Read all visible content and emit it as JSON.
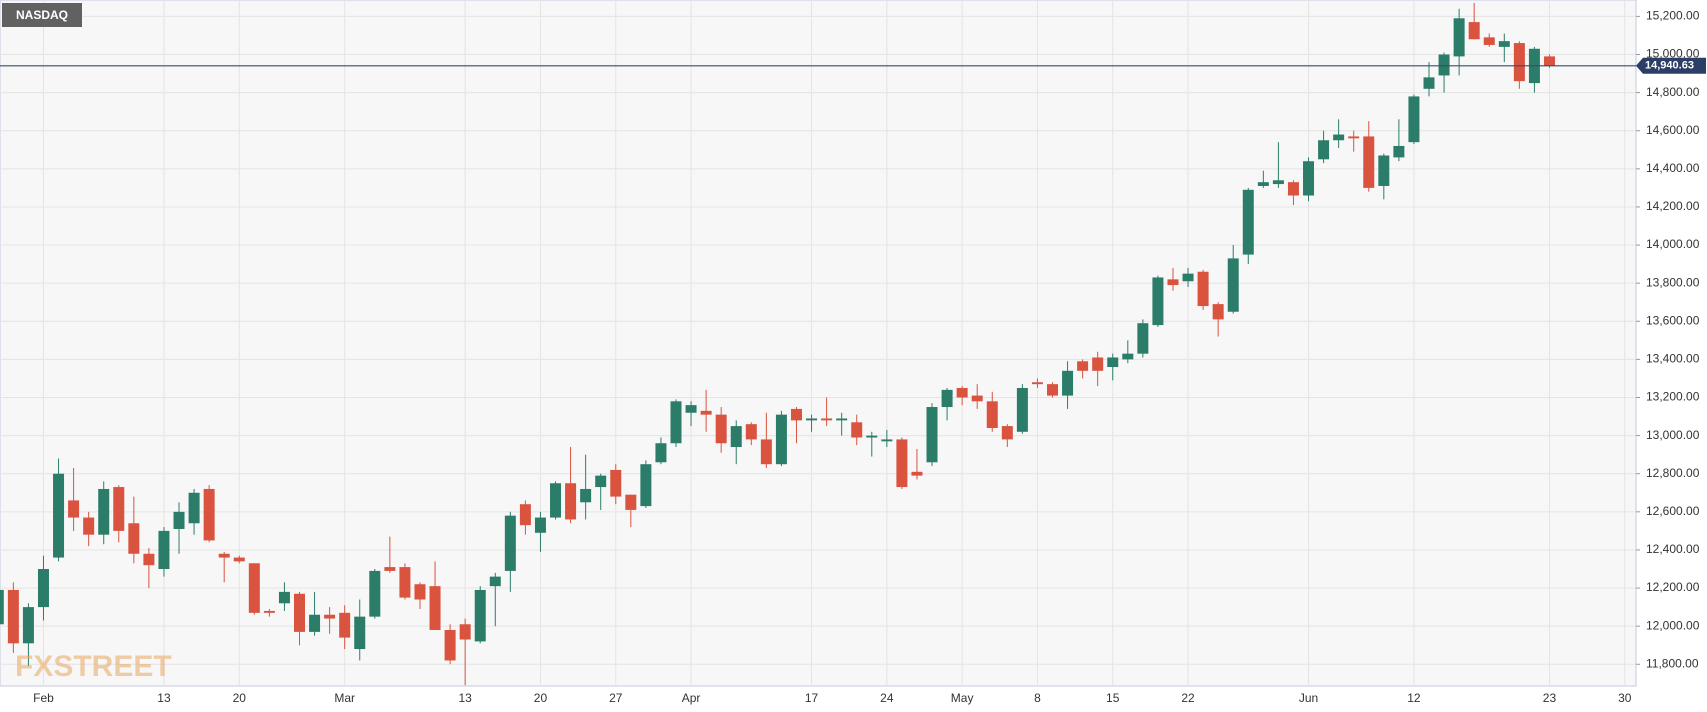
{
  "chart_data": {
    "type": "candlestick",
    "title": "NASDAQ",
    "watermark": "FXSTREET",
    "categories": [
      null,
      null,
      null,
      "Feb",
      null,
      null,
      null,
      null,
      null,
      null,
      null,
      "13",
      null,
      null,
      null,
      null,
      "20",
      null,
      null,
      null,
      null,
      null,
      null,
      "Mar",
      null,
      null,
      null,
      null,
      null,
      null,
      null,
      "13",
      null,
      null,
      null,
      null,
      "20",
      null,
      null,
      null,
      null,
      "27",
      null,
      null,
      null,
      null,
      "Apr",
      null,
      null,
      null,
      null,
      null,
      null,
      null,
      "17",
      null,
      null,
      null,
      null,
      "24",
      null,
      null,
      null,
      null,
      "May",
      null,
      null,
      null,
      null,
      "8",
      null,
      null,
      null,
      null,
      "15",
      null,
      null,
      null,
      null,
      "22",
      null,
      null,
      null,
      null,
      null,
      null,
      null,
      "Jun",
      null,
      null,
      null,
      null,
      null,
      null,
      "12",
      null,
      null,
      null,
      null,
      null,
      null,
      null,
      null,
      "23",
      null,
      null,
      null,
      null,
      "30"
    ],
    "open": [
      12010,
      12190,
      11910,
      12100,
      12360,
      12660,
      12570,
      12480,
      12730,
      12540,
      12380,
      12300,
      12510,
      12540,
      12720,
      12380,
      12360,
      12330,
      12080,
      12120,
      12170,
      11970,
      12060,
      12070,
      11880,
      12050,
      12310,
      12310,
      12220,
      12210,
      11980,
      12010,
      11920,
      12210,
      12290,
      12640,
      12490,
      12570,
      12750,
      12650,
      12730,
      12820,
      12690,
      12630,
      12860,
      12960,
      13120,
      13130,
      13110,
      12940,
      13060,
      12980,
      12850,
      13140,
      13080,
      13090,
      13080,
      13070,
      12990,
      12970,
      12980,
      12810,
      12860,
      13150,
      13250,
      13210,
      13180,
      13050,
      13020,
      13280,
      13270,
      13210,
      13390,
      13410,
      13360,
      13400,
      13430,
      13580,
      13820,
      13810,
      13860,
      13690,
      13650,
      13950,
      14310,
      14320,
      14330,
      14260,
      14450,
      14550,
      14570,
      14570,
      14310,
      14460,
      14540,
      14820,
      14890,
      14990,
      15170,
      15090,
      15040,
      15060,
      14850,
      14990,
      null,
      null,
      null,
      null,
      null
    ],
    "high": [
      12250,
      12230,
      12120,
      12370,
      12880,
      12830,
      12600,
      12760,
      12740,
      12680,
      12410,
      12520,
      12650,
      12720,
      12740,
      12390,
      12370,
      12330,
      12090,
      12230,
      12180,
      12180,
      12100,
      12110,
      12140,
      12300,
      12470,
      12330,
      12230,
      12340,
      12010,
      12040,
      12210,
      12280,
      12600,
      12660,
      12600,
      12760,
      12940,
      12900,
      12800,
      12850,
      12690,
      12870,
      12990,
      13190,
      13180,
      13240,
      13150,
      13080,
      13070,
      13120,
      13130,
      13150,
      13110,
      13200,
      13120,
      13110,
      13020,
      13030,
      12990,
      12930,
      13170,
      13250,
      13260,
      13270,
      13230,
      13060,
      13270,
      13300,
      13280,
      13390,
      13400,
      13440,
      13430,
      13500,
      13610,
      13840,
      13880,
      13880,
      13870,
      13700,
      14000,
      14300,
      14390,
      14540,
      14340,
      14460,
      14600,
      14660,
      14600,
      14650,
      14480,
      14660,
      14790,
      14960,
      15010,
      15240,
      15270,
      15110,
      15110,
      15070,
      15040,
      15000,
      null,
      null,
      null,
      null,
      null
    ],
    "low": [
      11950,
      11860,
      11790,
      12030,
      12340,
      12500,
      12420,
      12430,
      12440,
      12330,
      12200,
      12260,
      12380,
      12480,
      12440,
      12230,
      12330,
      12060,
      12050,
      12080,
      11900,
      11950,
      11960,
      11880,
      11820,
      12040,
      12280,
      12140,
      12090,
      11980,
      11800,
      11690,
      11910,
      12000,
      12180,
      12480,
      12390,
      12560,
      12540,
      12560,
      12610,
      12640,
      12520,
      12620,
      12850,
      12940,
      13050,
      13020,
      12910,
      12850,
      12950,
      12830,
      12840,
      12960,
      13020,
      13050,
      13000,
      12950,
      12890,
      12940,
      12720,
      12770,
      12840,
      13080,
      13160,
      13140,
      13020,
      12940,
      13010,
      13250,
      13200,
      13140,
      13300,
      13260,
      13290,
      13380,
      13410,
      13570,
      13760,
      13780,
      13660,
      13520,
      13640,
      13900,
      14300,
      14300,
      14210,
      14230,
      14430,
      14510,
      14490,
      14280,
      14240,
      14440,
      14530,
      14780,
      14800,
      14890,
      15080,
      15040,
      14960,
      14820,
      14800,
      14930,
      null,
      null,
      null,
      null,
      null
    ],
    "close": [
      12190,
      11910,
      12100,
      12300,
      12800,
      12570,
      12480,
      12720,
      12500,
      12380,
      12320,
      12500,
      12600,
      12700,
      12450,
      12360,
      12340,
      12070,
      12070,
      12180,
      11970,
      12060,
      12040,
      11940,
      12050,
      12290,
      12290,
      12150,
      12140,
      11980,
      11820,
      11930,
      12190,
      12260,
      12580,
      12530,
      12570,
      12750,
      12560,
      12720,
      12790,
      12680,
      12610,
      12850,
      12960,
      13180,
      13160,
      13110,
      12960,
      13050,
      12980,
      12850,
      13110,
      13080,
      13090,
      13080,
      13090,
      12990,
      13000,
      12980,
      12730,
      12790,
      13150,
      13240,
      13200,
      13180,
      13040,
      12980,
      13250,
      13270,
      13210,
      13340,
      13340,
      13340,
      13410,
      13430,
      13590,
      13830,
      13790,
      13850,
      13680,
      13610,
      13930,
      14290,
      14330,
      14340,
      14260,
      14440,
      14550,
      14580,
      14560,
      14300,
      14470,
      14520,
      14780,
      14880,
      15000,
      15190,
      15080,
      15050,
      15070,
      14860,
      15030,
      14940.63,
      null,
      null,
      null,
      null,
      null
    ],
    "up_color": "#2b7d6a",
    "down_color": "#d9533f",
    "last_price": {
      "value": 14940.63,
      "label": "14,940.63"
    },
    "ylim": [
      11686,
      15286
    ],
    "yticks": [
      {
        "value": 11800,
        "label": "11,800.00"
      },
      {
        "value": 12000,
        "label": "12,000.00"
      },
      {
        "value": 12200,
        "label": "12,200.00"
      },
      {
        "value": 12400,
        "label": "12,400.00"
      },
      {
        "value": 12600,
        "label": "12,600.00"
      },
      {
        "value": 12800,
        "label": "12,800.00"
      },
      {
        "value": 13000,
        "label": "13,000.00"
      },
      {
        "value": 13200,
        "label": "13,200.00"
      },
      {
        "value": 13400,
        "label": "13,400.00"
      },
      {
        "value": 13600,
        "label": "13,600.00"
      },
      {
        "value": 13800,
        "label": "13,800.00"
      },
      {
        "value": 14000,
        "label": "14,000.00"
      },
      {
        "value": 14200,
        "label": "14,200.00"
      },
      {
        "value": 14400,
        "label": "14,400.00"
      },
      {
        "value": 14600,
        "label": "14,600.00"
      },
      {
        "value": 14800,
        "label": "14,800.00"
      },
      {
        "value": 15000,
        "label": "15,000.00"
      },
      {
        "value": 15200,
        "label": "15,200.00"
      }
    ],
    "grid": true
  }
}
